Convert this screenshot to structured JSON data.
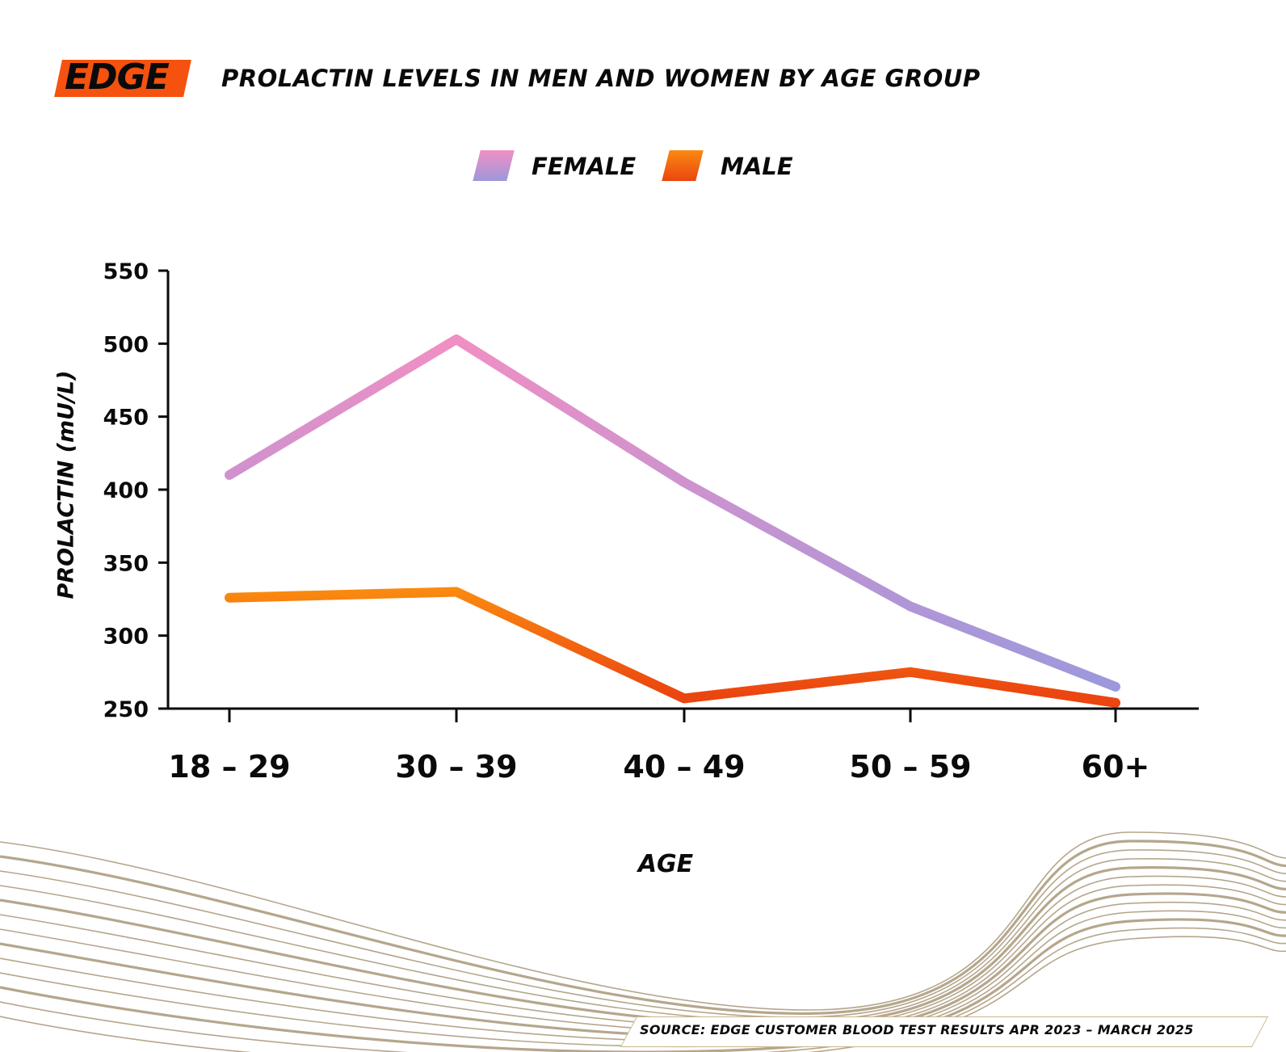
{
  "brand": {
    "logo_text": "EDGE",
    "logo_color": "#f5520f"
  },
  "legend": {
    "items": [
      {
        "label": "FEMALE",
        "color_top": "#f08fc4",
        "color_bottom": "#9d98dc"
      },
      {
        "label": "MALE",
        "color_top": "#fa8a10",
        "color_bottom": "#eb4510"
      }
    ]
  },
  "source": "SOURCE: EDGE CUSTOMER BLOOD TEST RESULTS APR 2023 – MARCH 2025",
  "chart_data": {
    "type": "line",
    "title": "PROLACTIN LEVELS IN MEN AND WOMEN BY AGE GROUP",
    "xlabel": "AGE",
    "ylabel": "PROLACTIN (mU/L)",
    "categories": [
      "18 – 29",
      "30 – 39",
      "40 – 49",
      "50 – 59",
      "60+"
    ],
    "ylim": [
      250,
      550
    ],
    "yticks": [
      250,
      300,
      350,
      400,
      450,
      500,
      550
    ],
    "grid": false,
    "legend_position": "top-center",
    "series": [
      {
        "name": "FEMALE",
        "values": [
          410,
          503,
          405,
          320,
          265
        ]
      },
      {
        "name": "MALE",
        "values": [
          326,
          330,
          257,
          275,
          254
        ]
      }
    ]
  }
}
